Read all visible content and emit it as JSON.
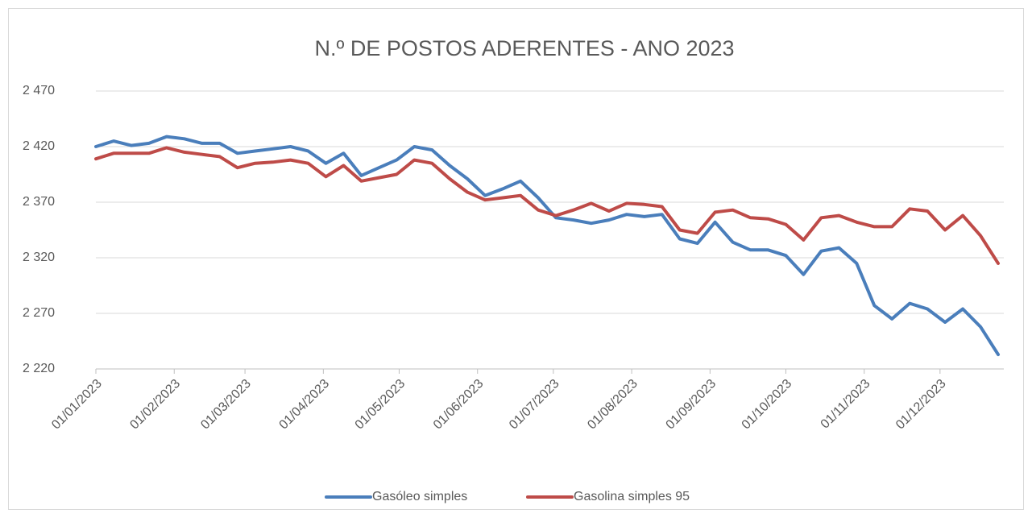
{
  "chart_data": {
    "type": "line",
    "title": "N.º DE POSTOS ADERENTES - ANO 2023",
    "x": [
      "2023-01-01",
      "2023-01-08",
      "2023-01-15",
      "2023-01-22",
      "2023-01-29",
      "2023-02-05",
      "2023-02-12",
      "2023-02-19",
      "2023-02-26",
      "2023-03-05",
      "2023-03-12",
      "2023-03-19",
      "2023-03-26",
      "2023-04-02",
      "2023-04-09",
      "2023-04-16",
      "2023-04-23",
      "2023-04-30",
      "2023-05-07",
      "2023-05-14",
      "2023-05-21",
      "2023-05-28",
      "2023-06-04",
      "2023-06-11",
      "2023-06-18",
      "2023-06-25",
      "2023-07-02",
      "2023-07-09",
      "2023-07-16",
      "2023-07-23",
      "2023-07-30",
      "2023-08-06",
      "2023-08-13",
      "2023-08-20",
      "2023-08-27",
      "2023-09-03",
      "2023-09-10",
      "2023-09-17",
      "2023-09-24",
      "2023-10-01",
      "2023-10-08",
      "2023-10-15",
      "2023-10-22",
      "2023-10-29",
      "2023-11-05",
      "2023-11-12",
      "2023-11-19",
      "2023-11-26",
      "2023-12-03",
      "2023-12-10",
      "2023-12-17",
      "2023-12-24"
    ],
    "series": [
      {
        "name": "Gasóleo simples",
        "color": "#4a7ebb",
        "values": [
          2420,
          2425,
          2421,
          2423,
          2429,
          2427,
          2423,
          2423,
          2414,
          2416,
          2418,
          2420,
          2416,
          2405,
          2414,
          2394,
          2401,
          2408,
          2420,
          2417,
          2403,
          2391,
          2376,
          2382,
          2389,
          2374,
          2356,
          2354,
          2351,
          2354,
          2359,
          2357,
          2359,
          2337,
          2333,
          2352,
          2334,
          2327,
          2327,
          2322,
          2305,
          2326,
          2329,
          2315,
          2277,
          2265,
          2279,
          2274,
          2262,
          2274,
          2258,
          2233
        ]
      },
      {
        "name": "Gasolina simples 95",
        "color": "#be4b48",
        "values": [
          2409,
          2414,
          2414,
          2414,
          2419,
          2415,
          2413,
          2411,
          2401,
          2405,
          2406,
          2408,
          2405,
          2393,
          2403,
          2389,
          2392,
          2395,
          2408,
          2405,
          2391,
          2379,
          2372,
          2374,
          2376,
          2363,
          2358,
          2363,
          2369,
          2362,
          2369,
          2368,
          2366,
          2345,
          2342,
          2361,
          2363,
          2356,
          2355,
          2350,
          2336,
          2356,
          2358,
          2352,
          2348,
          2348,
          2364,
          2362,
          2345,
          2358,
          2340,
          2315
        ]
      }
    ],
    "xlim": [
      "2023-01-01",
      "2023-12-24"
    ],
    "xticks": [
      {
        "value": "2023-01-01",
        "label": "01/01/2023"
      },
      {
        "value": "2023-02-01",
        "label": "01/02/2023"
      },
      {
        "value": "2023-03-01",
        "label": "01/03/2023"
      },
      {
        "value": "2023-04-01",
        "label": "01/04/2023"
      },
      {
        "value": "2023-05-01",
        "label": "01/05/2023"
      },
      {
        "value": "2023-06-01",
        "label": "01/06/2023"
      },
      {
        "value": "2023-07-01",
        "label": "01/07/2023"
      },
      {
        "value": "2023-08-01",
        "label": "01/08/2023"
      },
      {
        "value": "2023-09-01",
        "label": "01/09/2023"
      },
      {
        "value": "2023-10-01",
        "label": "01/10/2023"
      },
      {
        "value": "2023-11-01",
        "label": "01/11/2023"
      },
      {
        "value": "2023-12-01",
        "label": "01/12/2023"
      }
    ],
    "ylim": [
      2220,
      2470
    ],
    "yticks": [
      {
        "value": 2220,
        "label": "2 220"
      },
      {
        "value": 2270,
        "label": "2 270"
      },
      {
        "value": 2320,
        "label": "2 320"
      },
      {
        "value": 2370,
        "label": "2 370"
      },
      {
        "value": 2420,
        "label": "2 420"
      },
      {
        "value": 2470,
        "label": "2 470"
      }
    ],
    "grid": true,
    "legend": "bottom"
  }
}
